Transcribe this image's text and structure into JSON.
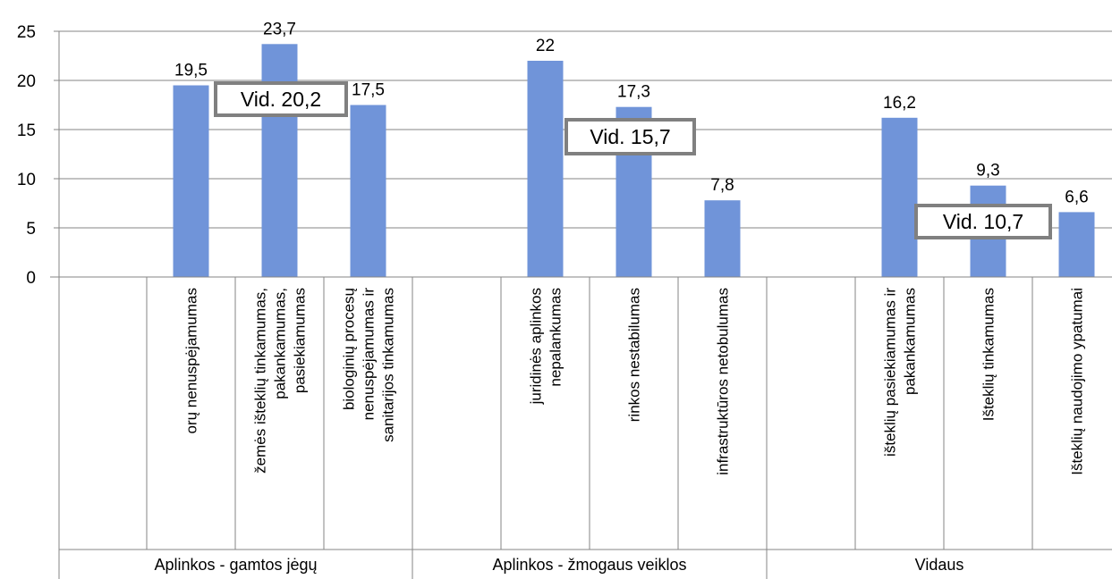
{
  "chart_data": {
    "type": "bar",
    "ylim": [
      0,
      25
    ],
    "yticks": [
      "0",
      "5",
      "10",
      "15",
      "20",
      "25"
    ],
    "grid": true,
    "bar_color": "#7094d9",
    "groups": [
      {
        "name": "Aplinkos - gamtos jėgų",
        "average_label": "Vid. 20,2",
        "average": 20.2,
        "categories": [
          {
            "label_lines": [
              "orų nenuspėjamumas"
            ],
            "value": 19.5,
            "value_label": "19,5"
          },
          {
            "label_lines": [
              "žemės išteklių tinkamumas,",
              "pakankamumas,",
              "pasiekiamumas"
            ],
            "value": 23.7,
            "value_label": "23,7"
          },
          {
            "label_lines": [
              "biologinių procesų",
              "nenuspėjamumas  ir",
              "sanitarijos tinkamumas"
            ],
            "value": 17.5,
            "value_label": "17,5"
          }
        ]
      },
      {
        "name": "Aplinkos - žmogaus veiklos",
        "average_label": "Vid. 15,7",
        "average": 15.7,
        "categories": [
          {
            "label_lines": [
              "juridinės aplinkos",
              "nepalankumas"
            ],
            "value": 22,
            "value_label": "22"
          },
          {
            "label_lines": [
              "rinkos nestabilumas"
            ],
            "value": 17.3,
            "value_label": "17,3"
          },
          {
            "label_lines": [
              "infrastruktūros netobulumas"
            ],
            "value": 7.8,
            "value_label": "7,8"
          }
        ]
      },
      {
        "name": "Vidaus",
        "average_label": "Vid. 10,7",
        "average": 10.7,
        "categories": [
          {
            "label_lines": [
              "išteklių pasiekiamumas ir",
              "pakankamumas"
            ],
            "value": 16.2,
            "value_label": "16,2"
          },
          {
            "label_lines": [
              "Išteklių tinkamumas"
            ],
            "value": 9.3,
            "value_label": "9,3"
          },
          {
            "label_lines": [
              "Išteklių naudojimo ypatumai"
            ],
            "value": 6.6,
            "value_label": "6,6"
          }
        ]
      }
    ]
  }
}
